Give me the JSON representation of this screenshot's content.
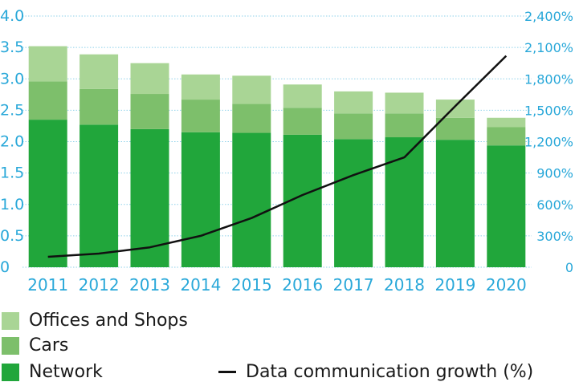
{
  "chart_data": {
    "type": "bar",
    "categories": [
      "2011",
      "2012",
      "2013",
      "2014",
      "2015",
      "2016",
      "2017",
      "2018",
      "2019",
      "2020"
    ],
    "series": [
      {
        "name": "Network",
        "values": [
          2.35,
          2.27,
          2.2,
          2.15,
          2.14,
          2.11,
          2.04,
          2.07,
          2.03,
          1.94
        ],
        "color": "#21a63b"
      },
      {
        "name": "Cars",
        "values": [
          0.61,
          0.57,
          0.56,
          0.52,
          0.46,
          0.43,
          0.41,
          0.38,
          0.35,
          0.29
        ],
        "color": "#7dbf6b"
      },
      {
        "name": "Offices and Shops",
        "values": [
          0.56,
          0.55,
          0.49,
          0.4,
          0.45,
          0.37,
          0.35,
          0.33,
          0.29,
          0.15
        ],
        "color": "#a9d595"
      },
      {
        "name": "Data communication growth (%)",
        "type": "line",
        "axis": "right",
        "values": [
          100,
          130,
          190,
          300,
          470,
          690,
          880,
          1050,
          1540,
          2020
        ],
        "color": "#111111"
      }
    ],
    "y_left": {
      "ylim": [
        0,
        4.0
      ],
      "ticks": [
        "0",
        "0.5",
        "1.0",
        "1.5",
        "2.0",
        "2.5",
        "3.0",
        "3.5",
        "4.0"
      ]
    },
    "y_right": {
      "ylim": [
        0,
        2400
      ],
      "ticks": [
        "0",
        "300%",
        "600%",
        "900%",
        "1,200%",
        "1,500%",
        "1,800%",
        "2,100%",
        "2,400%"
      ]
    },
    "grid": true,
    "legend_position": "bottom",
    "axis_text_color": "#29a8d9",
    "grid_color": "#8fd2ea"
  },
  "legend": {
    "offices": "Offices and Shops",
    "cars": "Cars",
    "network": "Network",
    "line": "Data communication growth (%)"
  }
}
